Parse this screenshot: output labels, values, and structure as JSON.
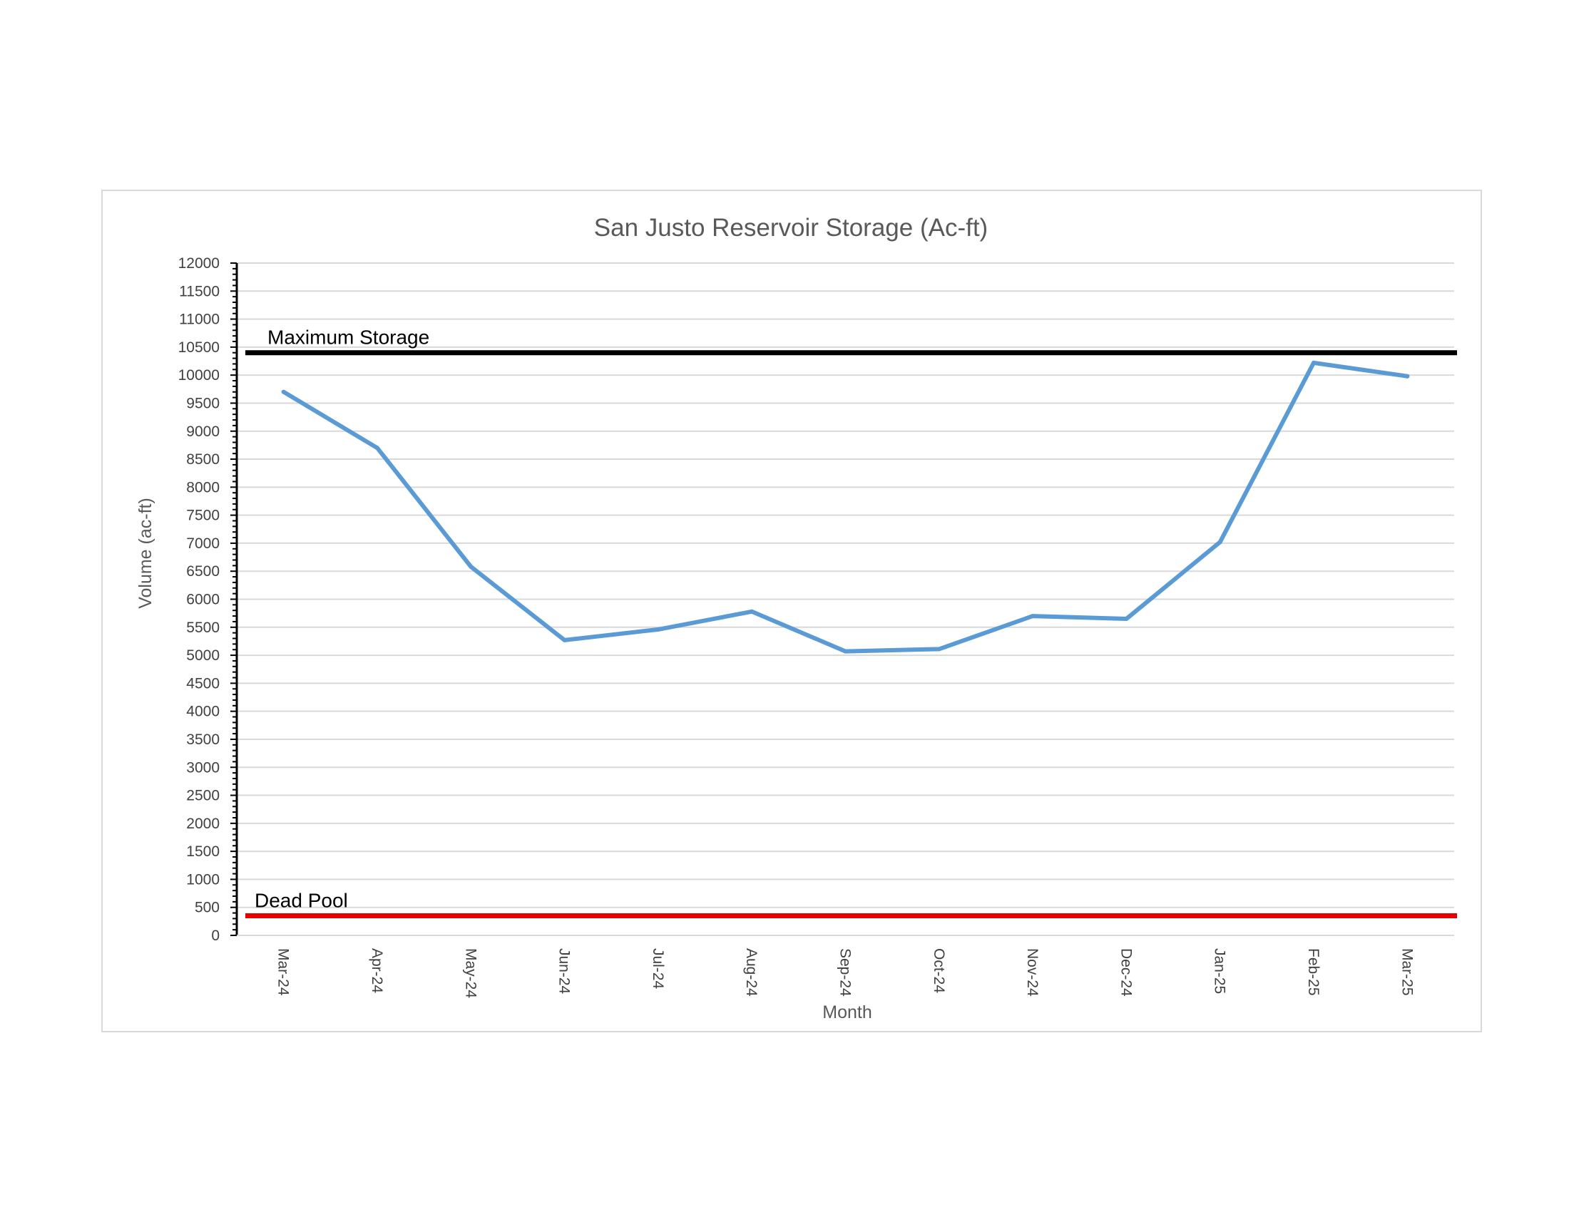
{
  "chart_data": {
    "type": "line",
    "title": "San Justo Reservoir Storage (Ac-ft)",
    "xlabel": "Month",
    "ylabel": "Volume (ac-ft)",
    "ylim": [
      0,
      12000
    ],
    "ytick_step": 500,
    "grid": true,
    "categories": [
      "Mar-24",
      "Apr-24",
      "May-24",
      "Jun-24",
      "Jul-24",
      "Aug-24",
      "Sep-24",
      "Oct-24",
      "Nov-24",
      "Dec-24",
      "Jan-25",
      "Feb-25",
      "Mar-25"
    ],
    "series": [
      {
        "values": [
          9700,
          8700,
          6580,
          5270,
          5460,
          5780,
          5070,
          5110,
          5700,
          5650,
          7020,
          10220,
          9980
        ],
        "color": "#5b9bd5"
      }
    ],
    "reference_lines": [
      {
        "label": "Maximum Storage",
        "value": 10400,
        "color": "#000000"
      },
      {
        "label": "Dead Pool",
        "value": 350,
        "color": "#e60000"
      }
    ]
  }
}
